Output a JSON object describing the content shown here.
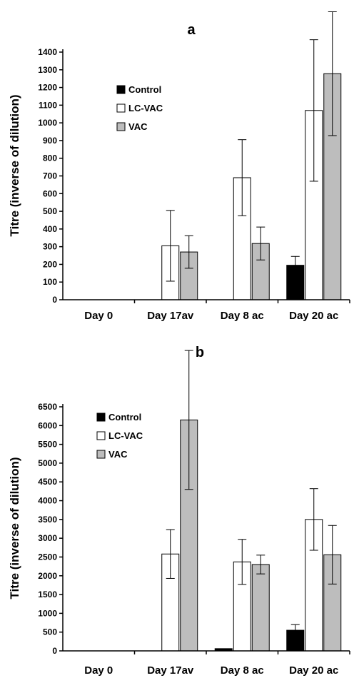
{
  "chart_data": [
    {
      "type": "bar",
      "title": "a",
      "ylabel": "Titre (inverse of dilution)",
      "xlabel": "",
      "categories": [
        "Day 0",
        "Day 17av",
        "Day 8 ac",
        "Day 20 ac"
      ],
      "ylim": [
        0,
        1400
      ],
      "yticks": [
        0,
        100,
        200,
        300,
        400,
        500,
        600,
        700,
        800,
        900,
        1000,
        1100,
        1200,
        1300,
        1400
      ],
      "legend": "top-left",
      "series": [
        {
          "name": "Control",
          "color": "#000000",
          "values": [
            0,
            0,
            0,
            195
          ],
          "errors": [
            0,
            0,
            0,
            50
          ]
        },
        {
          "name": "LC-VAC",
          "color": "#ffffff",
          "values": [
            0,
            305,
            690,
            1070
          ],
          "errors": [
            0,
            200,
            215,
            400
          ]
        },
        {
          "name": "VAC",
          "color": "#bdbdbd",
          "values": [
            0,
            270,
            318,
            1278
          ],
          "errors": [
            0,
            92,
            93,
            350
          ]
        }
      ]
    },
    {
      "type": "bar",
      "title": "b",
      "ylabel": "Titre (inverse of dilution)",
      "xlabel": "",
      "categories": [
        "Day 0",
        "Day 17av",
        "Day 8 ac",
        "Day 20 ac"
      ],
      "ylim": [
        0,
        6500
      ],
      "yticks": [
        0,
        500,
        1000,
        1500,
        2000,
        2500,
        3000,
        3500,
        4000,
        4500,
        5000,
        5500,
        6000,
        6500
      ],
      "legend": "top-left",
      "series": [
        {
          "name": "Control",
          "color": "#000000",
          "values": [
            0,
            0,
            60,
            550
          ],
          "errors": [
            0,
            0,
            0,
            150
          ]
        },
        {
          "name": "LC-VAC",
          "color": "#ffffff",
          "values": [
            0,
            2580,
            2370,
            3500
          ],
          "errors": [
            0,
            650,
            600,
            820
          ]
        },
        {
          "name": "VAC",
          "color": "#bdbdbd",
          "values": [
            0,
            6150,
            2300,
            2560
          ],
          "errors": [
            0,
            1850,
            250,
            780
          ]
        }
      ]
    }
  ]
}
